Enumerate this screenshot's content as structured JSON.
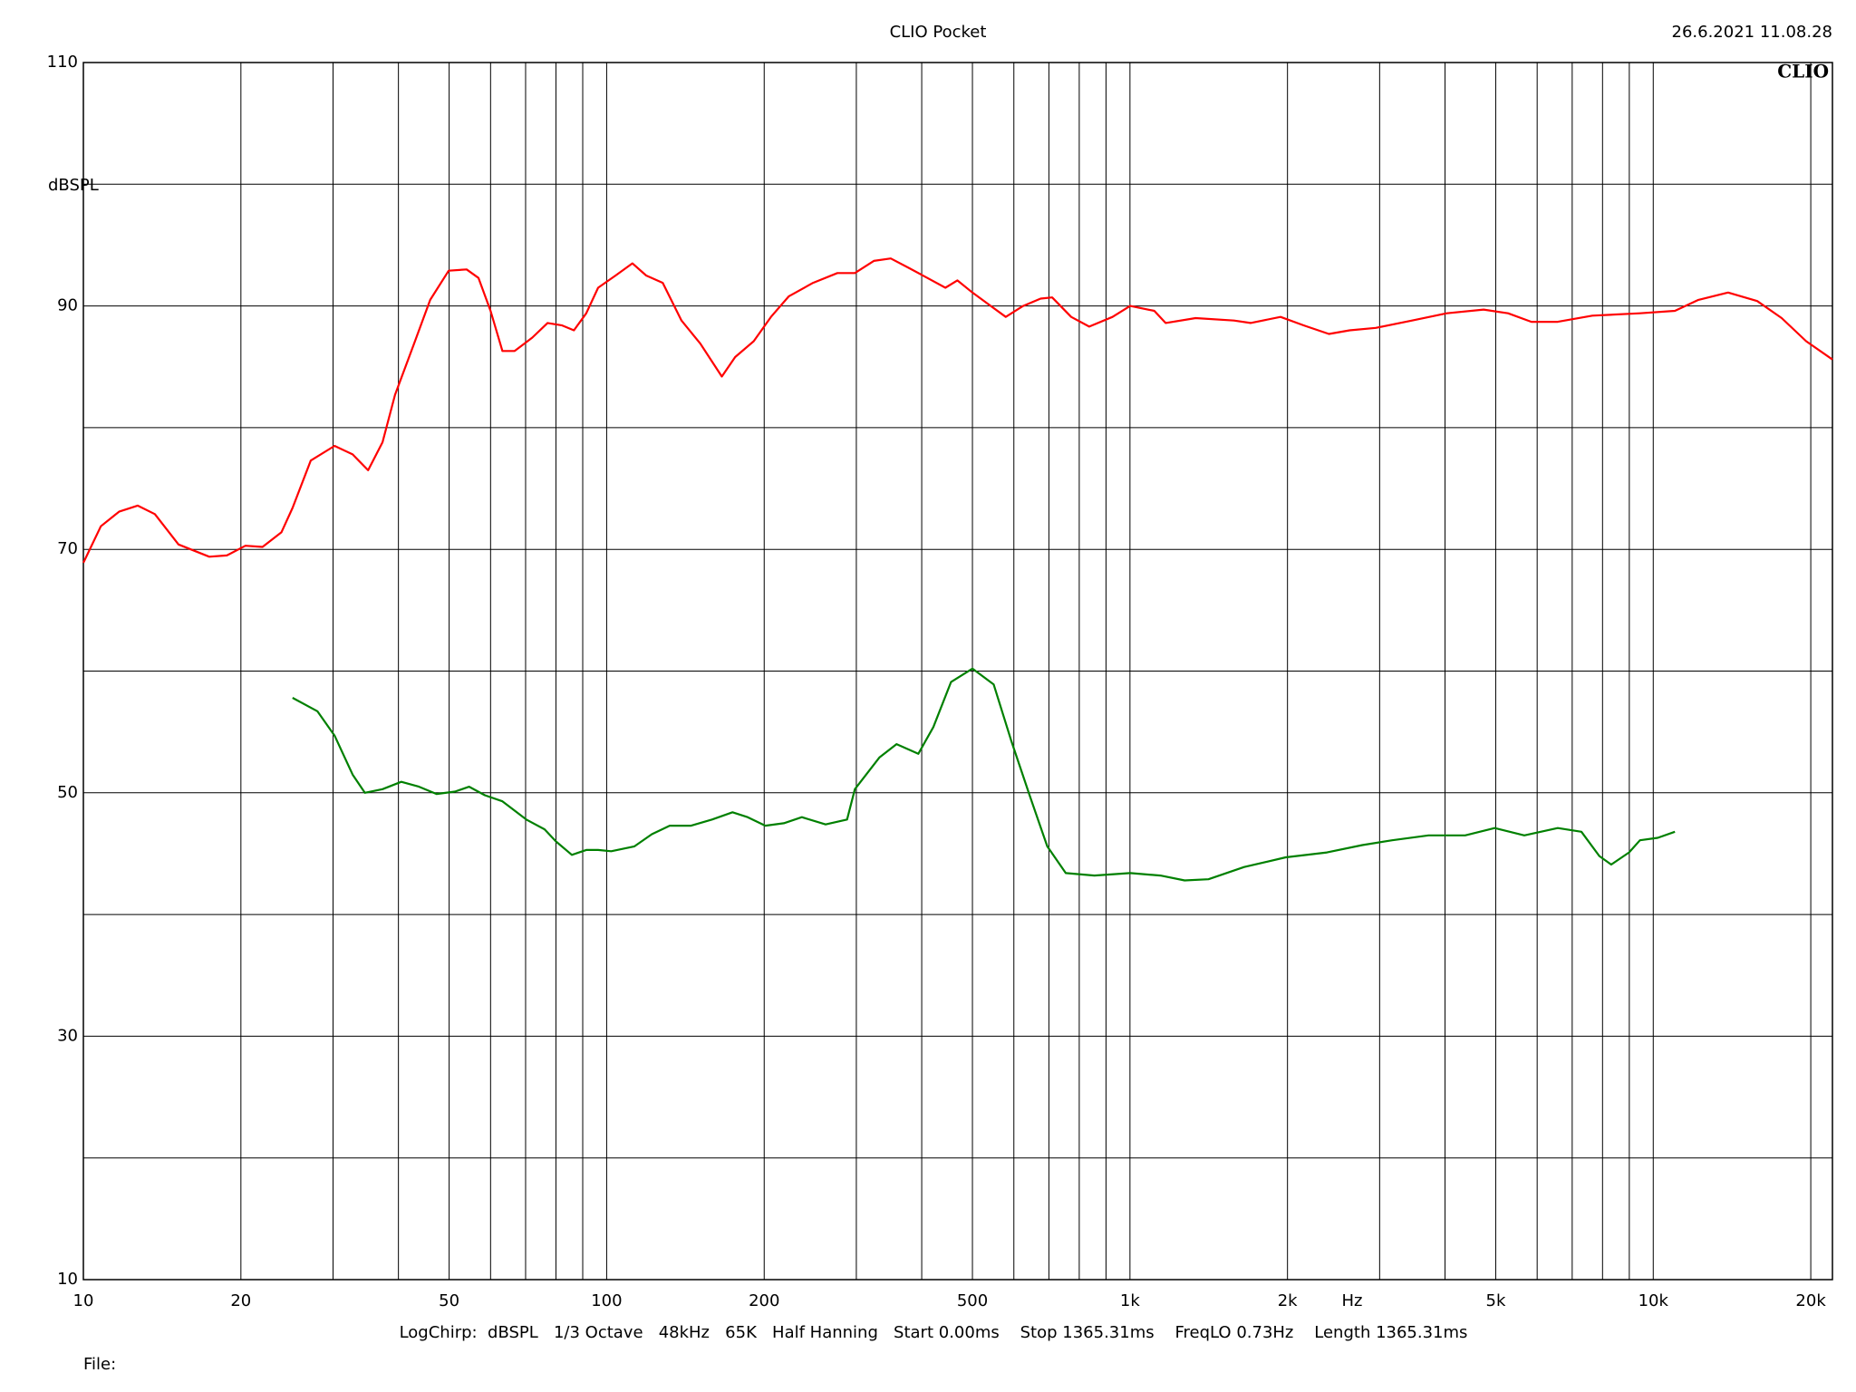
{
  "chart_data": {
    "type": "line",
    "title": "CLIO Pocket",
    "timestamp": "26.6.2021 11.08.28",
    "logo": "CLIO",
    "ylabel": "dBSPL",
    "xlabel": "Hz",
    "footer": "LogChirp:  dBSPL   1/3 Octave   48kHz   65K   Half Hanning   Start 0.00ms    Stop 1365.31ms    FreqLO 0.73Hz    Length 1365.31ms",
    "file_label": "File:",
    "xscale": "log",
    "xlim": [
      10,
      22000
    ],
    "ylim": [
      10,
      110
    ],
    "xticks": [
      10,
      20,
      50,
      100,
      200,
      500,
      {
        "value": 1000,
        "label": "1k"
      },
      {
        "value": 2000,
        "label": "2k"
      },
      {
        "value": 5000,
        "label": "5k"
      },
      {
        "value": 10000,
        "label": "10k"
      },
      {
        "value": 20000,
        "label": "20k"
      }
    ],
    "yticks": [
      10,
      30,
      50,
      70,
      90,
      110
    ],
    "xgrid": [
      10,
      20,
      30,
      40,
      50,
      60,
      70,
      80,
      90,
      100,
      200,
      300,
      400,
      500,
      600,
      700,
      800,
      900,
      1000,
      2000,
      3000,
      4000,
      5000,
      6000,
      7000,
      8000,
      9000,
      10000,
      20000
    ],
    "ygrid": [
      10,
      20,
      30,
      40,
      50,
      60,
      70,
      80,
      90,
      100,
      110
    ],
    "series": [
      {
        "color": "#ff0000",
        "x": [
          10,
          10.8,
          11.7,
          12.7,
          13.7,
          15.2,
          17.4,
          18.8,
          20.4,
          22.0,
          23.9,
          25.1,
          27.2,
          30.2,
          32.7,
          35.0,
          37.3,
          39.4,
          42.6,
          46.0,
          49.9,
          54.0,
          56.9,
          60.0,
          63.2,
          66.7,
          72.1,
          77.1,
          82.2,
          86.6,
          91.4,
          96.3,
          104,
          112,
          119,
          128,
          139,
          151,
          166,
          176,
          191,
          206,
          223,
          248,
          276,
          298,
          324,
          349,
          379,
          410,
          444,
          468,
          500,
          534,
          579,
          625,
          675,
          710,
          772,
          836,
          926,
          1001,
          1113,
          1170,
          1335,
          1580,
          1700,
          1940,
          2150,
          2400,
          2630,
          2950,
          3460,
          4030,
          4740,
          5280,
          5850,
          6570,
          7650,
          9430,
          11000,
          12200,
          13900,
          15800,
          17600,
          19600,
          22000
        ],
        "values": [
          68.9,
          71.9,
          73.1,
          73.6,
          72.9,
          70.4,
          69.4,
          69.5,
          70.3,
          70.2,
          71.4,
          73.4,
          77.3,
          78.5,
          77.8,
          76.5,
          78.8,
          82.7,
          86.6,
          90.5,
          92.9,
          93.0,
          92.3,
          89.6,
          86.3,
          86.3,
          87.4,
          88.6,
          88.4,
          88.0,
          89.4,
          91.5,
          92.5,
          93.5,
          92.5,
          91.9,
          88.8,
          86.9,
          84.2,
          85.8,
          87.1,
          89.1,
          90.8,
          91.9,
          92.7,
          92.7,
          93.7,
          93.9,
          93.1,
          92.3,
          91.5,
          92.1,
          91.1,
          90.2,
          89.1,
          90.0,
          90.6,
          90.7,
          89.1,
          88.3,
          89.1,
          90.0,
          89.6,
          88.6,
          89.0,
          88.8,
          88.6,
          89.1,
          88.4,
          87.7,
          88.0,
          88.2,
          88.8,
          89.4,
          89.7,
          89.4,
          88.7,
          88.7,
          89.2,
          89.4,
          89.6,
          90.5,
          91.1,
          90.4,
          89.0,
          87.1,
          85.6
        ]
      },
      {
        "color": "#008000",
        "x": [
          25.1,
          28.0,
          30.2,
          32.7,
          34.5,
          37.3,
          40.5,
          43.8,
          47.3,
          51.3,
          54.6,
          58.5,
          63.2,
          70.2,
          76.1,
          80.0,
          85.8,
          91.4,
          96.3,
          102,
          113,
          122,
          132,
          145,
          159,
          174,
          186,
          201,
          218,
          236,
          262,
          288,
          298,
          332,
          358,
          394,
          421,
          455,
          500,
          549,
          594,
          643,
          695,
          754,
          855,
          1001,
          1143,
          1272,
          1413,
          1653,
          1985,
          2380,
          2780,
          3170,
          3720,
          4370,
          4980,
          5670,
          6570,
          7290,
          7890,
          8310,
          8990,
          9430,
          10200,
          11000
        ],
        "values": [
          57.8,
          56.7,
          54.7,
          51.5,
          50.0,
          50.3,
          50.9,
          50.5,
          49.9,
          50.1,
          50.5,
          49.8,
          49.3,
          47.8,
          47.0,
          46.0,
          44.9,
          45.3,
          45.3,
          45.2,
          45.6,
          46.6,
          47.3,
          47.3,
          47.8,
          48.4,
          48.0,
          47.3,
          47.5,
          48.0,
          47.4,
          47.8,
          50.3,
          52.9,
          54.0,
          53.2,
          55.4,
          59.1,
          60.2,
          58.9,
          54.2,
          49.8,
          45.6,
          43.4,
          43.2,
          43.4,
          43.2,
          42.8,
          42.9,
          43.9,
          44.7,
          45.1,
          45.7,
          46.1,
          46.5,
          46.5,
          47.1,
          46.5,
          47.1,
          46.8,
          44.8,
          44.1,
          45.1,
          46.1,
          46.3,
          46.8
        ]
      }
    ]
  }
}
